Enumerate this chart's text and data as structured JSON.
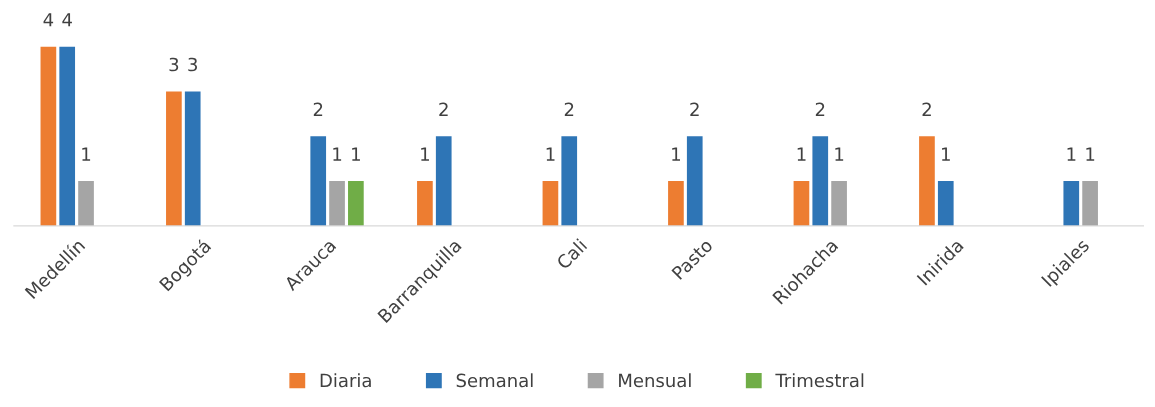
{
  "chart_data": {
    "type": "bar",
    "categories": [
      "Medellín",
      "Bogotá",
      "Arauca",
      "Barranquilla",
      "Cali",
      "Pasto",
      "Riohacha",
      "Inirida",
      "Ipiales"
    ],
    "series": [
      {
        "name": "Diaria",
        "color": "#ed7d31",
        "values": [
          4,
          3,
          null,
          1,
          1,
          1,
          1,
          2,
          null
        ]
      },
      {
        "name": "Semanal",
        "color": "#2e75b6",
        "values": [
          4,
          3,
          2,
          2,
          2,
          2,
          2,
          1,
          1
        ]
      },
      {
        "name": "Mensual",
        "color": "#a5a5a5",
        "values": [
          1,
          null,
          1,
          null,
          null,
          null,
          1,
          null,
          1
        ]
      },
      {
        "name": "Trimestral",
        "color": "#70ad47",
        "values": [
          null,
          null,
          1,
          null,
          null,
          null,
          null,
          null,
          null
        ]
      }
    ],
    "data_labels": true,
    "legend": "bottom",
    "grid": false
  }
}
